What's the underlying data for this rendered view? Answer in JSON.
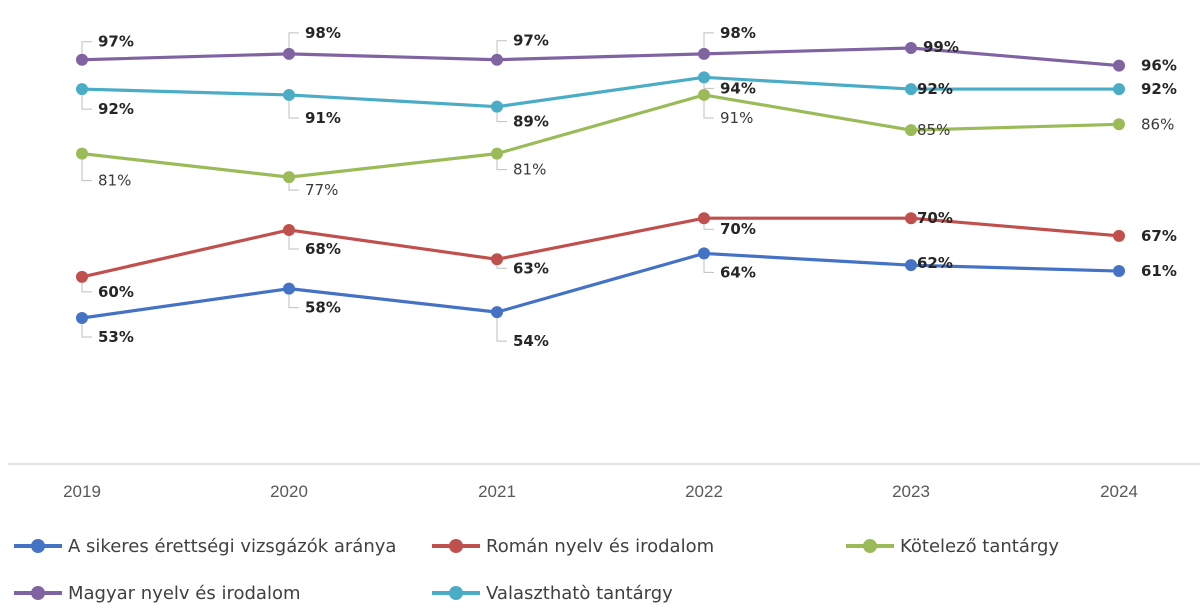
{
  "chart_data": {
    "type": "line",
    "categories": [
      "2019",
      "2020",
      "2021",
      "2022",
      "2023",
      "2024"
    ],
    "ylim": [
      0,
      100
    ],
    "grid": false,
    "legend_position": "bottom",
    "series": [
      {
        "name": "A sikeres érettségi vizsgázók aránya",
        "color": "#4472c4",
        "values": [
          53,
          58,
          54,
          64,
          62,
          61
        ],
        "labels": [
          "53%",
          "58%",
          "54%",
          "64%",
          "62%",
          "61%"
        ]
      },
      {
        "name": "Román nyelv és irodalom",
        "color": "#c0504d",
        "values": [
          60,
          68,
          63,
          70,
          70,
          67
        ],
        "labels": [
          "60%",
          "68%",
          "63%",
          "70%",
          "70%",
          "67%"
        ]
      },
      {
        "name": "Kötelező tantárgy",
        "color": "#9bbb59",
        "values": [
          81,
          77,
          81,
          91,
          85,
          86
        ],
        "labels": [
          "81%",
          "77%",
          "81%",
          "91%",
          "85%",
          "86%"
        ]
      },
      {
        "name": "Magyar nyelv és irodalom",
        "color": "#8064a2",
        "values": [
          97,
          98,
          97,
          98,
          99,
          96
        ],
        "labels": [
          "97%",
          "98%",
          "97%",
          "98%",
          "99%",
          "96%"
        ]
      },
      {
        "name": "Valaszthatò tantárgy",
        "color": "#4bacc6",
        "values": [
          92,
          91,
          89,
          94,
          92,
          92
        ],
        "labels": [
          "92%",
          "91%",
          "89%",
          "94%",
          "92%",
          "92%"
        ]
      }
    ]
  }
}
